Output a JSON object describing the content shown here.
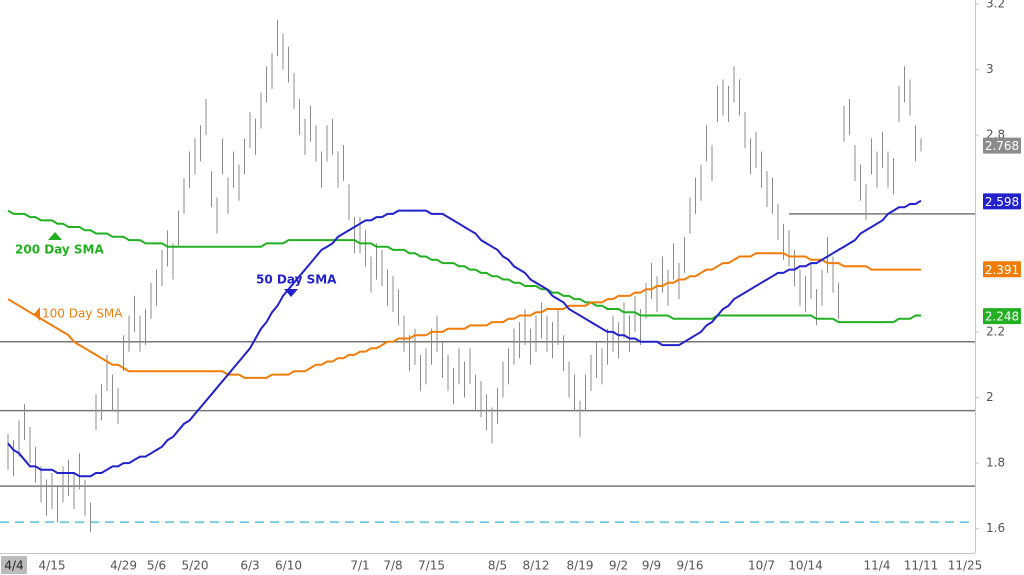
{
  "chart_data": {
    "type": "ohlc",
    "categories": [
      null,
      "4/4",
      null,
      null,
      null,
      null,
      null,
      null,
      "4/15",
      null,
      null,
      null,
      null,
      null,
      null,
      null,
      null,
      null,
      null,
      null,
      null,
      "4/29",
      null,
      null,
      null,
      null,
      null,
      "5/6",
      null,
      null,
      null,
      null,
      null,
      null,
      "5/20",
      null,
      null,
      null,
      null,
      null,
      null,
      null,
      null,
      null,
      "6/3",
      null,
      null,
      null,
      null,
      null,
      null,
      "6/10",
      null,
      null,
      null,
      null,
      null,
      null,
      null,
      null,
      null,
      null,
      null,
      null,
      "7/1",
      null,
      null,
      null,
      null,
      null,
      "7/8",
      null,
      null,
      null,
      null,
      null,
      null,
      "7/15",
      null,
      null,
      null,
      null,
      null,
      null,
      null,
      null,
      null,
      null,
      null,
      "8/5",
      null,
      null,
      null,
      null,
      null,
      null,
      "8/12",
      null,
      null,
      null,
      null,
      null,
      null,
      null,
      "8/19",
      null,
      null,
      null,
      null,
      null,
      null,
      "9/2",
      null,
      null,
      null,
      null,
      null,
      "9/9",
      null,
      null,
      null,
      null,
      null,
      null,
      "9/16",
      null,
      null,
      null,
      null,
      null,
      null,
      null,
      null,
      null,
      null,
      null,
      null,
      "10/7",
      null,
      null,
      null,
      null,
      null,
      null,
      null,
      "10/14",
      null,
      null,
      null,
      null,
      null,
      null,
      null,
      null,
      null,
      null,
      null,
      null,
      "11/4",
      null,
      null,
      null,
      null,
      null,
      null,
      null,
      "11/11",
      null,
      null,
      null,
      null,
      null,
      null,
      null,
      "11/25",
      null
    ],
    "high": [
      1.89,
      1.87,
      1.93,
      1.98,
      1.91,
      1.85,
      1.79,
      1.75,
      1.77,
      1.73,
      1.79,
      1.81,
      1.77,
      1.83,
      1.75,
      1.68,
      2.01,
      2.04,
      2.13,
      2.07,
      2.03,
      2.19,
      2.25,
      2.31,
      2.25,
      2.27,
      2.35,
      2.39,
      2.45,
      2.51,
      2.47,
      2.57,
      2.67,
      2.75,
      2.79,
      2.83,
      2.91,
      2.69,
      2.61,
      2.79,
      2.67,
      2.75,
      2.71,
      2.79,
      2.87,
      2.85,
      2.93,
      3.01,
      3.05,
      3.15,
      3.11,
      3.07,
      2.99,
      2.91,
      2.85,
      2.89,
      2.83,
      2.75,
      2.83,
      2.85,
      2.75,
      2.77,
      2.65,
      2.55,
      2.55,
      2.51,
      2.43,
      2.47,
      2.45,
      2.39,
      2.37,
      2.33,
      2.25,
      2.19,
      2.21,
      2.13,
      2.15,
      2.21,
      2.25,
      2.17,
      2.13,
      2.09,
      2.15,
      2.11,
      2.15,
      2.07,
      2.05,
      2.01,
      1.97,
      2.03,
      2.11,
      2.15,
      2.21,
      2.23,
      2.27,
      2.21,
      2.25,
      2.29,
      2.25,
      2.23,
      2.27,
      2.19,
      2.11,
      2.07,
      1.99,
      2.07,
      2.13,
      2.17,
      2.15,
      2.21,
      2.25,
      2.23,
      2.29,
      2.25,
      2.31,
      2.27,
      2.35,
      2.41,
      2.37,
      2.43,
      2.39,
      2.47,
      2.41,
      2.49,
      2.61,
      2.67,
      2.71,
      2.83,
      2.77,
      2.95,
      2.97,
      2.95,
      3.01,
      2.97,
      2.87,
      2.79,
      2.81,
      2.75,
      2.69,
      2.67,
      2.59,
      2.53,
      2.51,
      2.45,
      2.39,
      2.37,
      2.41,
      2.33,
      2.39,
      2.49,
      2.43,
      2.35,
      2.89,
      2.91,
      2.77,
      2.71,
      2.65,
      2.79,
      2.75,
      2.81,
      2.75,
      2.73,
      2.95,
      3.01,
      2.97,
      2.83,
      2.79,
      null,
      null,
      null,
      null,
      null,
      null,
      null,
      null,
      null
    ],
    "low": [
      1.78,
      1.76,
      1.82,
      1.87,
      1.8,
      1.74,
      1.68,
      1.64,
      1.66,
      1.62,
      1.68,
      1.7,
      1.66,
      1.72,
      1.64,
      1.59,
      1.9,
      1.93,
      2.02,
      1.96,
      1.92,
      2.08,
      2.14,
      2.2,
      2.14,
      2.16,
      2.24,
      2.28,
      2.34,
      2.4,
      2.36,
      2.46,
      2.56,
      2.64,
      2.68,
      2.72,
      2.8,
      2.58,
      2.5,
      2.68,
      2.56,
      2.64,
      2.6,
      2.68,
      2.76,
      2.74,
      2.82,
      2.9,
      2.94,
      3.04,
      3.0,
      2.96,
      2.88,
      2.8,
      2.74,
      2.78,
      2.72,
      2.64,
      2.72,
      2.74,
      2.64,
      2.66,
      2.54,
      2.44,
      2.44,
      2.4,
      2.32,
      2.36,
      2.34,
      2.28,
      2.26,
      2.22,
      2.14,
      2.08,
      2.1,
      2.02,
      2.04,
      2.1,
      2.14,
      2.06,
      2.02,
      1.98,
      2.04,
      2.0,
      2.04,
      1.96,
      1.94,
      1.9,
      1.86,
      1.92,
      2.0,
      2.04,
      2.1,
      2.12,
      2.16,
      2.1,
      2.14,
      2.18,
      2.14,
      2.12,
      2.16,
      2.08,
      2.0,
      1.96,
      1.88,
      1.96,
      2.02,
      2.06,
      2.04,
      2.1,
      2.14,
      2.12,
      2.18,
      2.14,
      2.2,
      2.16,
      2.24,
      2.3,
      2.26,
      2.32,
      2.28,
      2.36,
      2.3,
      2.38,
      2.5,
      2.56,
      2.6,
      2.72,
      2.66,
      2.84,
      2.86,
      2.84,
      2.9,
      2.86,
      2.76,
      2.68,
      2.7,
      2.64,
      2.58,
      2.56,
      2.48,
      2.42,
      2.4,
      2.34,
      2.28,
      2.26,
      2.3,
      2.22,
      2.28,
      2.38,
      2.32,
      2.24,
      2.78,
      2.8,
      2.66,
      2.6,
      2.54,
      2.68,
      2.64,
      2.7,
      2.64,
      2.62,
      2.84,
      2.9,
      2.86,
      2.72,
      2.75,
      null,
      null,
      null,
      null,
      null,
      null,
      null,
      null,
      null
    ],
    "bar_color": "#8c8c8c",
    "last_price": 2.768,
    "series": [
      {
        "name": "200 Day SMA",
        "color": "#22b022",
        "last": 2.248,
        "values": [
          2.57,
          2.56,
          2.56,
          2.56,
          2.55,
          2.55,
          2.54,
          2.54,
          2.54,
          2.53,
          2.53,
          2.52,
          2.52,
          2.52,
          2.51,
          2.51,
          2.5,
          2.5,
          2.5,
          2.49,
          2.49,
          2.49,
          2.48,
          2.48,
          2.48,
          2.47,
          2.47,
          2.47,
          2.47,
          2.46,
          2.46,
          2.46,
          2.46,
          2.46,
          2.46,
          2.46,
          2.46,
          2.46,
          2.46,
          2.46,
          2.46,
          2.46,
          2.46,
          2.46,
          2.46,
          2.46,
          2.46,
          2.47,
          2.47,
          2.47,
          2.47,
          2.48,
          2.48,
          2.48,
          2.48,
          2.48,
          2.48,
          2.48,
          2.48,
          2.48,
          2.48,
          2.48,
          2.48,
          2.48,
          2.47,
          2.47,
          2.47,
          2.46,
          2.46,
          2.46,
          2.45,
          2.45,
          2.45,
          2.44,
          2.44,
          2.43,
          2.43,
          2.42,
          2.42,
          2.41,
          2.41,
          2.41,
          2.4,
          2.4,
          2.39,
          2.39,
          2.38,
          2.38,
          2.37,
          2.37,
          2.36,
          2.36,
          2.35,
          2.35,
          2.34,
          2.34,
          2.34,
          2.33,
          2.33,
          2.32,
          2.32,
          2.31,
          2.31,
          2.3,
          2.3,
          2.29,
          2.29,
          2.28,
          2.28,
          2.27,
          2.27,
          2.27,
          2.26,
          2.26,
          2.26,
          2.25,
          2.25,
          2.25,
          2.25,
          2.25,
          2.25,
          2.24,
          2.24,
          2.24,
          2.24,
          2.24,
          2.24,
          2.24,
          2.24,
          2.25,
          2.25,
          2.25,
          2.25,
          2.25,
          2.25,
          2.25,
          2.25,
          2.25,
          2.25,
          2.25,
          2.25,
          2.25,
          2.25,
          2.25,
          2.25,
          2.25,
          2.25,
          2.24,
          2.24,
          2.24,
          2.24,
          2.23,
          2.23,
          2.23,
          2.23,
          2.23,
          2.23,
          2.23,
          2.23,
          2.23,
          2.23,
          2.23,
          2.24,
          2.24,
          2.24,
          2.25,
          2.25,
          null,
          null,
          null,
          null,
          null,
          null,
          null,
          null,
          null
        ]
      },
      {
        "name": "100 Day SMA",
        "color": "#f07d0a",
        "last": 2.391,
        "values": [
          2.3,
          2.29,
          2.28,
          2.27,
          2.26,
          2.25,
          2.24,
          2.23,
          2.22,
          2.21,
          2.2,
          2.19,
          2.17,
          2.16,
          2.15,
          2.14,
          2.13,
          2.12,
          2.11,
          2.1,
          2.1,
          2.09,
          2.08,
          2.08,
          2.08,
          2.08,
          2.08,
          2.08,
          2.08,
          2.08,
          2.08,
          2.08,
          2.08,
          2.08,
          2.08,
          2.08,
          2.08,
          2.08,
          2.08,
          2.08,
          2.07,
          2.07,
          2.07,
          2.06,
          2.06,
          2.06,
          2.06,
          2.06,
          2.07,
          2.07,
          2.07,
          2.07,
          2.08,
          2.08,
          2.08,
          2.09,
          2.1,
          2.1,
          2.11,
          2.11,
          2.12,
          2.12,
          2.13,
          2.13,
          2.14,
          2.14,
          2.15,
          2.15,
          2.16,
          2.17,
          2.17,
          2.18,
          2.18,
          2.18,
          2.19,
          2.19,
          2.19,
          2.2,
          2.2,
          2.2,
          2.21,
          2.21,
          2.21,
          2.21,
          2.22,
          2.22,
          2.22,
          2.22,
          2.23,
          2.23,
          2.23,
          2.24,
          2.24,
          2.25,
          2.25,
          2.25,
          2.26,
          2.26,
          2.27,
          2.27,
          2.27,
          2.27,
          2.28,
          2.28,
          2.28,
          2.28,
          2.29,
          2.29,
          2.29,
          2.3,
          2.3,
          2.31,
          2.31,
          2.31,
          2.32,
          2.32,
          2.33,
          2.33,
          2.34,
          2.34,
          2.35,
          2.35,
          2.36,
          2.36,
          2.37,
          2.37,
          2.38,
          2.39,
          2.39,
          2.4,
          2.41,
          2.41,
          2.42,
          2.43,
          2.43,
          2.43,
          2.44,
          2.44,
          2.44,
          2.44,
          2.44,
          2.44,
          2.43,
          2.43,
          2.43,
          2.43,
          2.42,
          2.42,
          2.42,
          2.41,
          2.41,
          2.41,
          2.4,
          2.4,
          2.4,
          2.4,
          2.4,
          2.39,
          2.39,
          2.39,
          2.39,
          2.39,
          2.39,
          2.39,
          2.39,
          2.39,
          2.39,
          null,
          null,
          null,
          null,
          null,
          null,
          null,
          null,
          null
        ]
      },
      {
        "name": "50 Day SMA",
        "color": "#2222cc",
        "last": 2.598,
        "values": [
          1.86,
          1.84,
          1.83,
          1.81,
          1.79,
          1.79,
          1.78,
          1.78,
          1.78,
          1.77,
          1.77,
          1.77,
          1.77,
          1.76,
          1.76,
          1.76,
          1.77,
          1.77,
          1.78,
          1.79,
          1.79,
          1.8,
          1.8,
          1.81,
          1.82,
          1.82,
          1.83,
          1.84,
          1.85,
          1.87,
          1.88,
          1.9,
          1.92,
          1.93,
          1.95,
          1.97,
          1.99,
          2.01,
          2.03,
          2.05,
          2.07,
          2.09,
          2.11,
          2.13,
          2.15,
          2.18,
          2.21,
          2.23,
          2.26,
          2.28,
          2.31,
          2.33,
          2.35,
          2.37,
          2.39,
          2.41,
          2.43,
          2.45,
          2.46,
          2.47,
          2.49,
          2.5,
          2.51,
          2.52,
          2.53,
          2.54,
          2.54,
          2.55,
          2.55,
          2.56,
          2.56,
          2.57,
          2.57,
          2.57,
          2.57,
          2.57,
          2.57,
          2.56,
          2.56,
          2.56,
          2.55,
          2.54,
          2.53,
          2.52,
          2.51,
          2.5,
          2.48,
          2.47,
          2.46,
          2.45,
          2.43,
          2.42,
          2.4,
          2.39,
          2.38,
          2.36,
          2.35,
          2.34,
          2.33,
          2.31,
          2.3,
          2.29,
          2.27,
          2.26,
          2.25,
          2.24,
          2.23,
          2.22,
          2.21,
          2.2,
          2.2,
          2.19,
          2.19,
          2.18,
          2.18,
          2.17,
          2.17,
          2.17,
          2.17,
          2.16,
          2.16,
          2.16,
          2.16,
          2.17,
          2.18,
          2.19,
          2.2,
          2.22,
          2.23,
          2.25,
          2.27,
          2.28,
          2.3,
          2.31,
          2.32,
          2.33,
          2.34,
          2.35,
          2.36,
          2.37,
          2.38,
          2.38,
          2.39,
          2.39,
          2.4,
          2.4,
          2.41,
          2.41,
          2.42,
          2.43,
          2.44,
          2.45,
          2.46,
          2.47,
          2.48,
          2.5,
          2.51,
          2.52,
          2.53,
          2.54,
          2.56,
          2.57,
          2.58,
          2.58,
          2.59,
          2.59,
          2.6,
          null,
          null,
          null,
          null,
          null,
          null,
          null,
          null,
          null
        ]
      }
    ],
    "levels": [
      2.17,
      1.96,
      1.73
    ],
    "dashed_level": 1.62,
    "segment_level": {
      "value": 2.56,
      "start": 142
    },
    "ylim": [
      1.526,
      3.212
    ],
    "yticks": [
      1.6,
      1.8,
      2,
      2.2,
      2.8,
      3,
      3.2
    ]
  }
}
